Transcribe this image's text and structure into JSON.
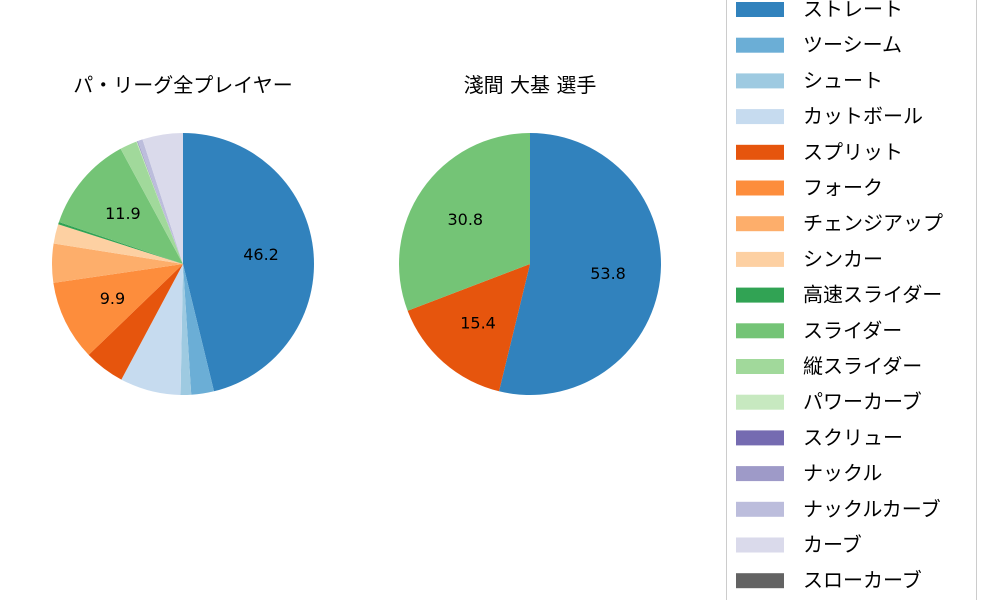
{
  "chart_data": [
    {
      "type": "pie",
      "title": "パ・リーグ全プレイヤー",
      "slices": [
        {
          "name": "ストレート",
          "value": 46.2,
          "label": "46.2",
          "color": "#3182bd"
        },
        {
          "name": "ツーシーム",
          "value": 2.8,
          "label": "",
          "color": "#6baed6"
        },
        {
          "name": "シュート",
          "value": 1.3,
          "label": "",
          "color": "#9ecae1"
        },
        {
          "name": "カットボール",
          "value": 7.5,
          "label": "",
          "color": "#c6dbef"
        },
        {
          "name": "スプリット",
          "value": 5.0,
          "label": "",
          "color": "#e6550d"
        },
        {
          "name": "フォーク",
          "value": 9.9,
          "label": "9.9",
          "color": "#fd8d3c"
        },
        {
          "name": "チェンジアップ",
          "value": 4.8,
          "label": "",
          "color": "#fdae6b"
        },
        {
          "name": "シンカー",
          "value": 2.4,
          "label": "",
          "color": "#fdd0a2"
        },
        {
          "name": "高速スライダー",
          "value": 0.3,
          "label": "",
          "color": "#31a354"
        },
        {
          "name": "スライダー",
          "value": 11.9,
          "label": "11.9",
          "color": "#74c476"
        },
        {
          "name": "縦スライダー",
          "value": 2.1,
          "label": "",
          "color": "#a1d99b"
        },
        {
          "name": "パワーカーブ",
          "value": 0.1,
          "label": "",
          "color": "#c7e9c0"
        },
        {
          "name": "スクリュー",
          "value": 0.05,
          "label": "",
          "color": "#756bb1"
        },
        {
          "name": "ナックル",
          "value": 0.05,
          "label": "",
          "color": "#9e9ac8"
        },
        {
          "name": "ナックルカーブ",
          "value": 0.6,
          "label": "",
          "color": "#bcbddc"
        },
        {
          "name": "カーブ",
          "value": 5.0,
          "label": "",
          "color": "#dadaeb"
        },
        {
          "name": "スローカーブ",
          "value": 0.0,
          "label": "",
          "color": "#636363"
        }
      ]
    },
    {
      "type": "pie",
      "title": "淺間 大基  選手",
      "slices": [
        {
          "name": "ストレート",
          "value": 53.8,
          "label": "53.8",
          "color": "#3182bd"
        },
        {
          "name": "スプリット",
          "value": 15.4,
          "label": "15.4",
          "color": "#e6550d"
        },
        {
          "name": "スライダー",
          "value": 30.8,
          "label": "30.8",
          "color": "#74c476"
        }
      ]
    }
  ],
  "legend": {
    "placement": "right",
    "items": [
      {
        "label": "ストレート",
        "color": "#3182bd"
      },
      {
        "label": "ツーシーム",
        "color": "#6baed6"
      },
      {
        "label": "シュート",
        "color": "#9ecae1"
      },
      {
        "label": "カットボール",
        "color": "#c6dbef"
      },
      {
        "label": "スプリット",
        "color": "#e6550d"
      },
      {
        "label": "フォーク",
        "color": "#fd8d3c"
      },
      {
        "label": "チェンジアップ",
        "color": "#fdae6b"
      },
      {
        "label": "シンカー",
        "color": "#fdd0a2"
      },
      {
        "label": "高速スライダー",
        "color": "#31a354"
      },
      {
        "label": "スライダー",
        "color": "#74c476"
      },
      {
        "label": "縦スライダー",
        "color": "#a1d99b"
      },
      {
        "label": "パワーカーブ",
        "color": "#c7e9c0"
      },
      {
        "label": "スクリュー",
        "color": "#756bb1"
      },
      {
        "label": "ナックル",
        "color": "#9e9ac8"
      },
      {
        "label": "ナックルカーブ",
        "color": "#bcbddc"
      },
      {
        "label": "カーブ",
        "color": "#dadaeb"
      },
      {
        "label": "スローカーブ",
        "color": "#636363"
      }
    ]
  }
}
